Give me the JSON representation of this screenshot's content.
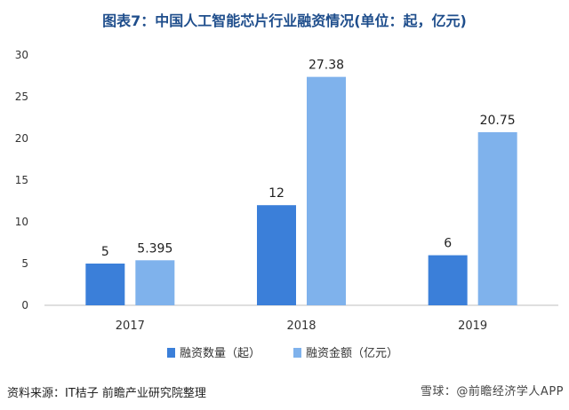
{
  "title": "图表7：中国人工智能芯片行业融资情况(单位：起，亿元)",
  "source": "资料来源：IT桔子 前瞻产业研究院整理",
  "watermark_text": "雪球：@前瞻经济学人APP",
  "colors": {
    "series1": "#3b7fd9",
    "series2": "#7fb2ec",
    "axis": "#bfbfbf",
    "title": "#1f4e8c"
  },
  "chart_data": {
    "type": "bar",
    "title": "图表7：中国人工智能芯片行业融资情况(单位：起，亿元)",
    "categories": [
      "2017",
      "2018",
      "2019"
    ],
    "series": [
      {
        "name": "融资数量（起）",
        "values": [
          5,
          12,
          6
        ],
        "labels": [
          "5",
          "12",
          "6"
        ],
        "color": "#3b7fd9"
      },
      {
        "name": "融资金额（亿元）",
        "values": [
          5.395,
          27.38,
          20.75
        ],
        "labels": [
          "5.395",
          "27.38",
          "20.75"
        ],
        "color": "#7fb2ec"
      }
    ],
    "ylim": [
      0,
      30
    ],
    "yticks": [
      0,
      5,
      10,
      15,
      20,
      25,
      30
    ],
    "grid": false,
    "legend": "bottom"
  }
}
